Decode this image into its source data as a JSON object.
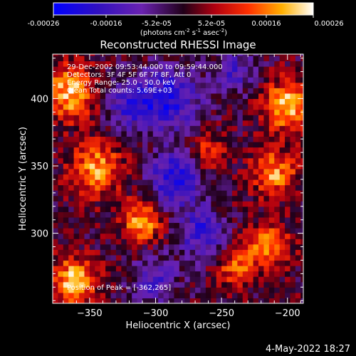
{
  "chart_data": {
    "type": "heatmap",
    "title": "Reconstructed RHESSI Image",
    "xlabel": "Heliocentric X (arcsec)",
    "ylabel": "Heliocentric Y (arcsec)",
    "xlim": [
      -378,
      -188
    ],
    "ylim": [
      248,
      433
    ],
    "xticks": [
      -350,
      -300,
      -250,
      -200
    ],
    "yticks": [
      300,
      350,
      400
    ],
    "colorbar": {
      "ticks": [
        "-0.00026",
        "-0.00016",
        "-5.2e-05",
        "5.2e-05",
        "0.00016",
        "0.00026"
      ],
      "unit_prefix": "(photons cm",
      "unit_mid": " s",
      "unit_end": " asec",
      "unit_close": ")",
      "sup1": "-2",
      "sup2": "-1",
      "sup3": "-2",
      "range": [
        -0.00026,
        0.00026
      ]
    },
    "annotations": [
      "29-Dec-2002 09:53:44.000 to 09:59:44.000",
      "Detectors: 3F 4F 5F 6F 7F 8F, Att 0",
      "Energy Range: 25.0 - 50.0 keV",
      "Clean    Total counts: 5.69E+03"
    ],
    "peak_text": "Position of Peak = [-362,265]",
    "grid": false,
    "colormap_stops": [
      "#0000ff",
      "#4010a0",
      "#8020a0",
      "#300010",
      "#ff2000",
      "#ffa000",
      "#ffffff"
    ],
    "source_blobs": [
      {
        "x": -365,
        "y": 405,
        "amp": 1.0,
        "s": 14
      },
      {
        "x": -362,
        "y": 265,
        "amp": 1.0,
        "s": 12
      },
      {
        "x": -345,
        "y": 348,
        "amp": 0.85,
        "s": 14
      },
      {
        "x": -310,
        "y": 310,
        "amp": 0.9,
        "s": 11
      },
      {
        "x": -200,
        "y": 395,
        "amp": 1.0,
        "s": 13
      },
      {
        "x": -210,
        "y": 345,
        "amp": 0.85,
        "s": 12
      },
      {
        "x": -215,
        "y": 290,
        "amp": 0.8,
        "s": 12
      },
      {
        "x": -260,
        "y": 360,
        "amp": 0.6,
        "s": 10
      },
      {
        "x": -240,
        "y": 275,
        "amp": 0.65,
        "s": 9
      },
      {
        "x": -290,
        "y": 400,
        "amp": -0.9,
        "s": 16
      },
      {
        "x": -285,
        "y": 340,
        "amp": -1.0,
        "s": 14
      },
      {
        "x": -320,
        "y": 395,
        "amp": -0.7,
        "s": 13
      },
      {
        "x": -265,
        "y": 300,
        "amp": -0.8,
        "s": 12
      },
      {
        "x": -300,
        "y": 265,
        "amp": -0.6,
        "s": 12
      },
      {
        "x": -240,
        "y": 420,
        "amp": -0.6,
        "s": 11
      }
    ]
  },
  "footer": {
    "timestamp": "4-May-2022 18:27"
  }
}
